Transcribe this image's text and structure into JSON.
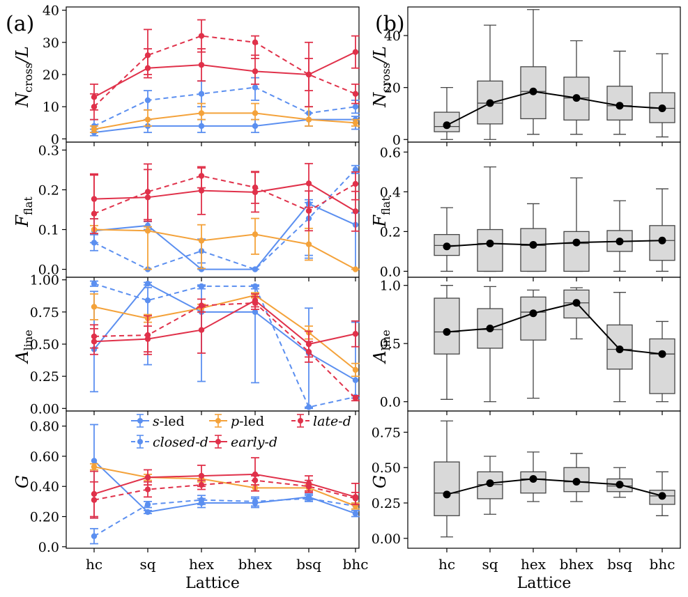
{
  "figure": {
    "panel_a_label": "(a)",
    "panel_b_label": "(b)",
    "xlabel": "Lattice"
  },
  "colors": {
    "blue": "#5b8ff0",
    "orange": "#f4a23a",
    "red": "#e0314a",
    "box_fill": "#d9d9d9",
    "black": "#000000"
  },
  "legend": [
    {
      "label": "s-led",
      "color": "blue",
      "dash": false
    },
    {
      "label": "closed-d",
      "color": "blue",
      "dash": true
    },
    {
      "label": "p-led",
      "color": "orange",
      "dash": false
    },
    {
      "label": "early-d",
      "color": "red",
      "dash": false
    },
    {
      "label": "late-d",
      "color": "red",
      "dash": true
    }
  ],
  "chart_data": [
    {
      "type": "line",
      "panel": "a",
      "row": 0,
      "ylabel": "N_cross/L",
      "ylim": [
        -1,
        41
      ],
      "yticks": [
        "0",
        "10",
        "20",
        "30",
        "40"
      ],
      "ytick_values": [
        0,
        10,
        20,
        30,
        40
      ],
      "categories": [
        "hc",
        "sq",
        "hex",
        "bhex",
        "bsq",
        "bhc"
      ],
      "series": [
        {
          "name": "s-led",
          "color": "blue",
          "dash": false,
          "values": [
            2,
            4,
            4,
            4,
            6,
            6
          ],
          "err_lo": [
            1,
            2,
            2,
            2,
            2,
            3
          ],
          "err_hi": [
            1,
            2,
            2,
            2,
            2,
            1
          ]
        },
        {
          "name": "closed-d",
          "color": "blue",
          "dash": true,
          "values": [
            4,
            12,
            14,
            16,
            8,
            10
          ],
          "err_lo": [
            2,
            3,
            4,
            4,
            2,
            2
          ],
          "err_hi": [
            2,
            3,
            4,
            3,
            2,
            2
          ]
        },
        {
          "name": "p-led",
          "color": "orange",
          "dash": false,
          "values": [
            3,
            6,
            8,
            8,
            6,
            5
          ],
          "err_lo": [
            1,
            2,
            2,
            2,
            2,
            1
          ],
          "err_hi": [
            1,
            3,
            3,
            3,
            4,
            1
          ]
        },
        {
          "name": "early-d",
          "color": "red",
          "dash": false,
          "values": [
            13,
            22,
            23,
            21,
            20,
            27
          ],
          "err_lo": [
            4,
            3,
            5,
            4,
            5,
            5
          ],
          "err_hi": [
            4,
            6,
            5,
            5,
            5,
            5
          ]
        },
        {
          "name": "late-d",
          "color": "red",
          "dash": true,
          "values": [
            10,
            26,
            32,
            30,
            20,
            14
          ],
          "err_lo": [
            4,
            6,
            5,
            5,
            10,
            3
          ],
          "err_hi": [
            4,
            8,
            5,
            2,
            10,
            3
          ]
        }
      ]
    },
    {
      "type": "line",
      "panel": "a",
      "row": 1,
      "ylabel": "F_flat",
      "ylim": [
        -0.02,
        0.32
      ],
      "yticks": [
        "0.0",
        "0.1",
        "0.2",
        "0.3"
      ],
      "ytick_values": [
        0,
        0.1,
        0.2,
        0.3
      ],
      "categories": [
        "hc",
        "sq",
        "hex",
        "bhex",
        "bsq",
        "bhc"
      ],
      "series": [
        {
          "name": "s-led",
          "color": "blue",
          "dash": false,
          "values": [
            0.097,
            0.11,
            0.0,
            0.0,
            0.165,
            0.112
          ],
          "err_lo": [
            0.03,
            0.01,
            0.0,
            0.0,
            0.13,
            0.112
          ],
          "err_hi": [
            0.03,
            0.01,
            0.0,
            0.0,
            0.01,
            0.03
          ]
        },
        {
          "name": "closed-d",
          "color": "blue",
          "dash": true,
          "values": [
            0.067,
            0.0,
            0.046,
            0.0,
            0.128,
            0.251
          ],
          "err_lo": [
            0.02,
            0.0,
            0.03,
            0.0,
            0.1,
            0.01
          ],
          "err_hi": [
            0.02,
            0.0,
            0.03,
            0.0,
            0.04,
            0.01
          ]
        },
        {
          "name": "p-led",
          "color": "orange",
          "dash": false,
          "values": [
            0.1,
            0.097,
            0.072,
            0.088,
            0.063,
            0.0
          ],
          "err_lo": [
            0.01,
            0.097,
            0.07,
            0.05,
            0.04,
            0.0
          ],
          "err_hi": [
            0.01,
            0.01,
            0.04,
            0.04,
            0.04,
            0.0
          ]
        },
        {
          "name": "early-d",
          "color": "red",
          "dash": false,
          "values": [
            0.177,
            0.181,
            0.198,
            0.194,
            0.216,
            0.146
          ],
          "err_lo": [
            0.05,
            0.06,
            0.06,
            0.05,
            0.06,
            0.05
          ],
          "err_hi": [
            0.06,
            0.07,
            0.06,
            0.05,
            0.05,
            0.05
          ]
        },
        {
          "name": "late-d",
          "color": "red",
          "dash": true,
          "values": [
            0.14,
            0.195,
            0.235,
            0.206,
            0.147,
            0.215
          ],
          "err_lo": [
            0.05,
            0.07,
            0.03,
            0.04,
            0.05,
            0.04
          ],
          "err_hi": [
            0.1,
            0.07,
            0.02,
            0.04,
            0.05,
            0.03
          ]
        }
      ]
    },
    {
      "type": "line",
      "panel": "a",
      "row": 2,
      "ylabel": "A_line",
      "ylim": [
        -0.02,
        1.02
      ],
      "yticks": [
        "0.00",
        "0.25",
        "0.50",
        "0.75",
        "1.00"
      ],
      "ytick_values": [
        0,
        0.25,
        0.5,
        0.75,
        1.0
      ],
      "categories": [
        "hc",
        "sq",
        "hex",
        "bhex",
        "bsq",
        "bhc"
      ],
      "series": [
        {
          "name": "s-led",
          "color": "blue",
          "dash": false,
          "values": [
            0.46,
            0.97,
            0.75,
            0.75,
            0.43,
            0.22
          ],
          "err_lo": [
            0.33,
            0.01,
            0.54,
            0.55,
            0.43,
            0.14
          ],
          "err_hi": [
            0.45,
            0.01,
            0.2,
            0.2,
            0.35,
            0.45
          ]
        },
        {
          "name": "closed-d",
          "color": "blue",
          "dash": true,
          "values": [
            0.97,
            0.84,
            0.95,
            0.95,
            0.01,
            0.09
          ],
          "err_lo": [
            0.02,
            0.5,
            0.02,
            0.02,
            0.0,
            0.01
          ],
          "err_hi": [
            0.02,
            0.1,
            0.01,
            0.01,
            0.0,
            0.01
          ]
        },
        {
          "name": "p-led",
          "color": "orange",
          "dash": false,
          "values": [
            0.79,
            0.7,
            0.78,
            0.88,
            0.59,
            0.3
          ],
          "err_lo": [
            0.1,
            0.03,
            0.03,
            0.02,
            0.05,
            0.05
          ],
          "err_hi": [
            0.1,
            0.03,
            0.03,
            0.02,
            0.05,
            0.05
          ]
        },
        {
          "name": "early-d",
          "color": "red",
          "dash": false,
          "values": [
            0.52,
            0.54,
            0.61,
            0.84,
            0.5,
            0.58
          ],
          "err_lo": [
            0.1,
            0.1,
            0.18,
            0.05,
            0.1,
            0.1
          ],
          "err_hi": [
            0.1,
            0.1,
            0.18,
            0.05,
            0.1,
            0.1
          ]
        },
        {
          "name": "late-d",
          "color": "red",
          "dash": true,
          "values": [
            0.56,
            0.57,
            0.8,
            0.82,
            0.44,
            0.08
          ],
          "err_lo": [
            0.09,
            0.15,
            0.05,
            0.05,
            0.08,
            0.02
          ],
          "err_hi": [
            0.09,
            0.15,
            0.05,
            0.05,
            0.08,
            0.02
          ]
        }
      ]
    },
    {
      "type": "line",
      "panel": "a",
      "row": 3,
      "ylabel": "G",
      "ylim": [
        -0.01,
        0.9
      ],
      "yticks": [
        "0.0",
        "0.20",
        "0.40",
        "0.60",
        "0.80"
      ],
      "ytick_values": [
        0,
        0.2,
        0.4,
        0.6,
        0.8
      ],
      "categories": [
        "hc",
        "sq",
        "hex",
        "bhex",
        "bsq",
        "bhc"
      ],
      "series": [
        {
          "name": "s-led",
          "color": "blue",
          "dash": false,
          "values": [
            0.57,
            0.23,
            0.29,
            0.29,
            0.33,
            0.22
          ],
          "err_lo": [
            0.38,
            0.01,
            0.03,
            0.03,
            0.02,
            0.02
          ],
          "err_hi": [
            0.24,
            0.01,
            0.03,
            0.03,
            0.02,
            0.02
          ]
        },
        {
          "name": "closed-d",
          "color": "blue",
          "dash": true,
          "values": [
            0.07,
            0.28,
            0.31,
            0.3,
            0.32,
            0.27
          ],
          "err_lo": [
            0.05,
            0.02,
            0.03,
            0.03,
            0.02,
            0.02
          ],
          "err_hi": [
            0.05,
            0.02,
            0.03,
            0.03,
            0.02,
            0.02
          ]
        },
        {
          "name": "p-led",
          "color": "orange",
          "dash": false,
          "values": [
            0.53,
            0.46,
            0.45,
            0.39,
            0.39,
            0.27
          ],
          "err_lo": [
            0.02,
            0.02,
            0.02,
            0.02,
            0.02,
            0.02
          ],
          "err_hi": [
            0.02,
            0.02,
            0.02,
            0.02,
            0.02,
            0.02
          ]
        },
        {
          "name": "early-d",
          "color": "red",
          "dash": false,
          "values": [
            0.35,
            0.46,
            0.47,
            0.48,
            0.42,
            0.33
          ],
          "err_lo": [
            0.15,
            0.05,
            0.07,
            0.11,
            0.05,
            0.05
          ],
          "err_hi": [
            0.15,
            0.05,
            0.07,
            0.11,
            0.05,
            0.09
          ]
        },
        {
          "name": "late-d",
          "color": "red",
          "dash": true,
          "values": [
            0.31,
            0.38,
            0.41,
            0.44,
            0.4,
            0.32
          ],
          "err_lo": [
            0.12,
            0.05,
            0.03,
            0.03,
            0.04,
            0.04
          ],
          "err_hi": [
            0.12,
            0.05,
            0.03,
            0.03,
            0.04,
            0.04
          ]
        }
      ]
    },
    {
      "type": "box",
      "panel": "b",
      "row": 0,
      "ylabel": "N_cross/L",
      "ylim": [
        -1,
        51
      ],
      "yticks": [
        "0",
        "20",
        "40"
      ],
      "ytick_values": [
        0,
        20,
        40
      ],
      "categories": [
        "hc",
        "sq",
        "hex",
        "bhex",
        "bsq",
        "bhc"
      ],
      "whisker_lo": [
        0,
        0,
        2,
        2,
        2,
        1
      ],
      "q1": [
        3,
        6,
        8,
        7.5,
        7.5,
        6.5
      ],
      "median": [
        5,
        14,
        18.5,
        16,
        13,
        12
      ],
      "q3": [
        10.5,
        22.5,
        28,
        24,
        20.5,
        18
      ],
      "whisker_hi": [
        20,
        44,
        50,
        38,
        34,
        33
      ],
      "mean": [
        5.5,
        14,
        18.5,
        16,
        13,
        12
      ]
    },
    {
      "type": "box",
      "panel": "b",
      "row": 1,
      "ylabel": "F_flat",
      "ylim": [
        -0.03,
        0.65
      ],
      "yticks": [
        "0.0",
        "0.2",
        "0.4",
        "0.6"
      ],
      "ytick_values": [
        0,
        0.2,
        0.4,
        0.6
      ],
      "categories": [
        "hc",
        "sq",
        "hex",
        "bhex",
        "bsq",
        "bhc"
      ],
      "whisker_lo": [
        0,
        0,
        0,
        0,
        0,
        0
      ],
      "q1": [
        0.08,
        0.0,
        0.0,
        0.0,
        0.1,
        0.055
      ],
      "median": [
        0.13,
        0.14,
        0.13,
        0.14,
        0.15,
        0.155
      ],
      "q3": [
        0.185,
        0.21,
        0.215,
        0.2,
        0.205,
        0.23
      ],
      "whisker_hi": [
        0.32,
        0.525,
        0.34,
        0.47,
        0.355,
        0.415
      ],
      "mean": [
        0.125,
        0.14,
        0.133,
        0.145,
        0.15,
        0.155
      ]
    },
    {
      "type": "box",
      "panel": "b",
      "row": 2,
      "ylabel": "A_line",
      "ylim": [
        -0.08,
        1.07
      ],
      "yticks": [
        "0.0",
        "0.5",
        "1.0"
      ],
      "ytick_values": [
        0,
        0.5,
        1.0
      ],
      "categories": [
        "hc",
        "sq",
        "hex",
        "bhex",
        "bsq",
        "bhc"
      ],
      "whisker_lo": [
        0.02,
        0.0,
        0.03,
        0.54,
        0.0,
        0.0
      ],
      "q1": [
        0.41,
        0.46,
        0.53,
        0.72,
        0.28,
        0.07
      ],
      "median": [
        0.6,
        0.62,
        0.77,
        0.85,
        0.45,
        0.41
      ],
      "q3": [
        0.89,
        0.8,
        0.9,
        0.96,
        0.66,
        0.54
      ],
      "whisker_hi": [
        1.0,
        0.99,
        0.96,
        0.98,
        0.94,
        0.69
      ],
      "mean": [
        0.6,
        0.63,
        0.76,
        0.85,
        0.45,
        0.41
      ]
    },
    {
      "type": "box",
      "panel": "b",
      "row": 3,
      "ylabel": "G",
      "ylim": [
        -0.07,
        0.9
      ],
      "yticks": [
        "0.00",
        "0.25",
        "0.50",
        "0.75"
      ],
      "ytick_values": [
        0,
        0.25,
        0.5,
        0.75
      ],
      "categories": [
        "hc",
        "sq",
        "hex",
        "bhex",
        "bsq",
        "bhc"
      ],
      "whisker_lo": [
        0.01,
        0.17,
        0.26,
        0.26,
        0.29,
        0.16
      ],
      "q1": [
        0.16,
        0.28,
        0.32,
        0.33,
        0.33,
        0.24
      ],
      "median": [
        0.32,
        0.38,
        0.42,
        0.4,
        0.37,
        0.3
      ],
      "q3": [
        0.54,
        0.47,
        0.47,
        0.5,
        0.42,
        0.34
      ],
      "whisker_hi": [
        0.83,
        0.58,
        0.61,
        0.6,
        0.5,
        0.47
      ],
      "mean": [
        0.31,
        0.39,
        0.42,
        0.4,
        0.38,
        0.3
      ]
    }
  ]
}
